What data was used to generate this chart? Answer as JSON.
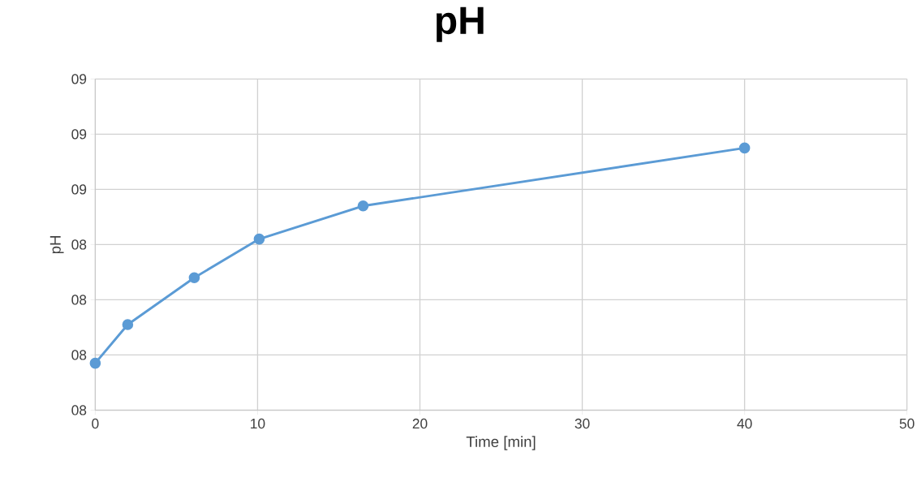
{
  "chart_data": {
    "type": "line",
    "title": "pH",
    "xlabel": "Time [min]",
    "ylabel": "pH",
    "x": [
      0,
      2,
      6.1,
      10.1,
      16.5,
      40
    ],
    "series": [
      {
        "color": "#5b9bd5",
        "values": [
          7.97,
          8.11,
          8.28,
          8.42,
          8.54,
          8.75
        ]
      }
    ],
    "xlim": [
      0,
      50
    ],
    "xticks": [
      0,
      10,
      20,
      30,
      40,
      50
    ],
    "ylim": [
      7.8,
      9.0
    ],
    "yticks": [
      {
        "value": 7.8,
        "label": "08"
      },
      {
        "value": 8.0,
        "label": "08"
      },
      {
        "value": 8.2,
        "label": "08"
      },
      {
        "value": 8.4,
        "label": "08"
      },
      {
        "value": 8.6,
        "label": "09"
      },
      {
        "value": 8.8,
        "label": "09"
      },
      {
        "value": 9.0,
        "label": "09"
      }
    ],
    "grid": true,
    "marker": "circle",
    "line_style": "solid"
  }
}
